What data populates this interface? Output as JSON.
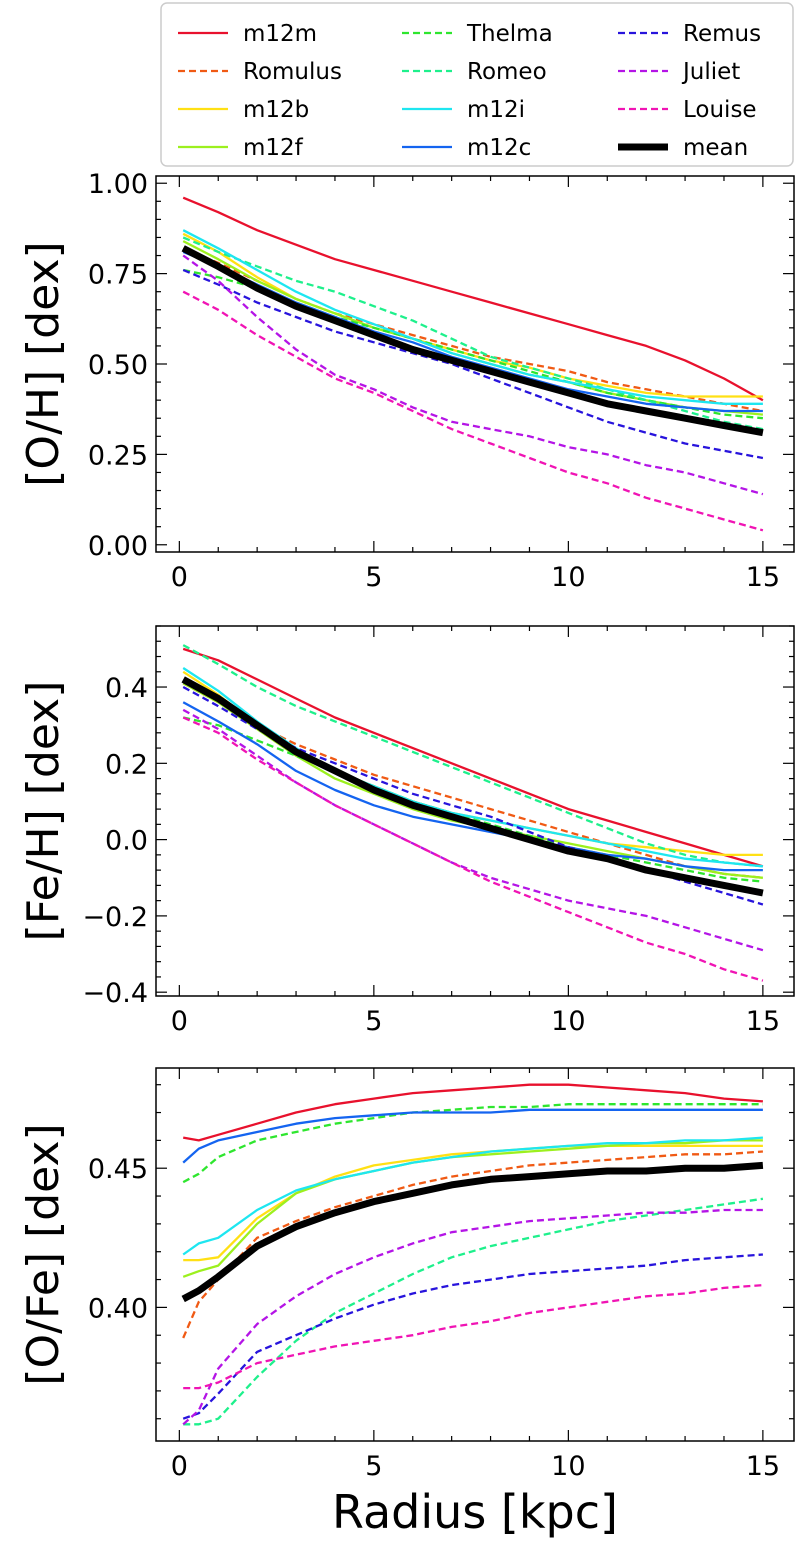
{
  "legend": {
    "placement": "top",
    "columns": 3,
    "entries": [
      {
        "name": "m12m",
        "color": "#e8112d",
        "dash": "solid"
      },
      {
        "name": "Romulus",
        "color": "#f05a14",
        "dash": "dashed"
      },
      {
        "name": "m12b",
        "color": "#ffe014",
        "dash": "solid"
      },
      {
        "name": "m12f",
        "color": "#9cf01e",
        "dash": "solid"
      },
      {
        "name": "Thelma",
        "color": "#2ee62e",
        "dash": "dashed"
      },
      {
        "name": "Romeo",
        "color": "#1ef08c",
        "dash": "dashed"
      },
      {
        "name": "m12i",
        "color": "#1ee6f0",
        "dash": "solid"
      },
      {
        "name": "m12c",
        "color": "#1464f0",
        "dash": "solid"
      },
      {
        "name": "Remus",
        "color": "#2814dc",
        "dash": "dashed"
      },
      {
        "name": "Juliet",
        "color": "#b414e6",
        "dash": "dashed"
      },
      {
        "name": "Louise",
        "color": "#f014b4",
        "dash": "dashed"
      },
      {
        "name": "mean",
        "color": "#000000",
        "dash": "solid"
      }
    ]
  },
  "chart_data": [
    {
      "type": "line",
      "ylabel": "[O/H] [dex]",
      "xlabel": "",
      "xlim": [
        -0.6,
        15.8
      ],
      "ylim": [
        -0.02,
        1.02
      ],
      "xticks": [
        0,
        5,
        10,
        15
      ],
      "xtick_labels": [
        "0",
        "5",
        "10",
        "15"
      ],
      "yticks": [
        0.0,
        0.25,
        0.5,
        0.75,
        1.0
      ],
      "ytick_labels": [
        "0.00",
        "0.25",
        "0.50",
        "0.75",
        "1.00"
      ],
      "x": [
        0.1,
        1,
        2,
        3,
        4,
        5,
        6,
        7,
        8,
        9,
        10,
        11,
        12,
        13,
        14,
        15
      ],
      "series": [
        {
          "name": "m12m",
          "values": [
            0.96,
            0.92,
            0.87,
            0.83,
            0.79,
            0.76,
            0.73,
            0.7,
            0.67,
            0.64,
            0.61,
            0.58,
            0.55,
            0.51,
            0.46,
            0.4
          ]
        },
        {
          "name": "Romulus",
          "values": [
            0.82,
            0.78,
            0.73,
            0.68,
            0.64,
            0.61,
            0.58,
            0.55,
            0.52,
            0.5,
            0.48,
            0.45,
            0.43,
            0.41,
            0.39,
            0.37
          ]
        },
        {
          "name": "m12b",
          "values": [
            0.86,
            0.81,
            0.74,
            0.68,
            0.64,
            0.6,
            0.57,
            0.54,
            0.51,
            0.49,
            0.46,
            0.44,
            0.42,
            0.41,
            0.41,
            0.41
          ]
        },
        {
          "name": "m12f",
          "values": [
            0.84,
            0.79,
            0.73,
            0.68,
            0.64,
            0.6,
            0.57,
            0.53,
            0.5,
            0.47,
            0.45,
            0.42,
            0.4,
            0.38,
            0.37,
            0.36
          ]
        },
        {
          "name": "Thelma",
          "values": [
            0.76,
            0.74,
            0.71,
            0.67,
            0.63,
            0.6,
            0.57,
            0.54,
            0.51,
            0.48,
            0.45,
            0.42,
            0.4,
            0.38,
            0.36,
            0.35
          ]
        },
        {
          "name": "Romeo",
          "values": [
            0.85,
            0.81,
            0.77,
            0.73,
            0.7,
            0.66,
            0.62,
            0.57,
            0.52,
            0.49,
            0.46,
            0.43,
            0.4,
            0.37,
            0.34,
            0.32
          ]
        },
        {
          "name": "m12i",
          "values": [
            0.87,
            0.82,
            0.76,
            0.7,
            0.65,
            0.61,
            0.57,
            0.53,
            0.5,
            0.47,
            0.45,
            0.43,
            0.41,
            0.4,
            0.39,
            0.39
          ]
        },
        {
          "name": "m12c",
          "values": [
            0.81,
            0.77,
            0.72,
            0.67,
            0.63,
            0.59,
            0.56,
            0.52,
            0.49,
            0.46,
            0.43,
            0.41,
            0.39,
            0.38,
            0.37,
            0.37
          ]
        },
        {
          "name": "Remus",
          "values": [
            0.76,
            0.72,
            0.67,
            0.63,
            0.59,
            0.56,
            0.53,
            0.5,
            0.46,
            0.42,
            0.38,
            0.34,
            0.31,
            0.28,
            0.26,
            0.24
          ]
        },
        {
          "name": "Juliet",
          "values": [
            0.8,
            0.73,
            0.63,
            0.54,
            0.47,
            0.43,
            0.38,
            0.34,
            0.32,
            0.3,
            0.27,
            0.25,
            0.22,
            0.2,
            0.17,
            0.14
          ]
        },
        {
          "name": "Louise",
          "values": [
            0.7,
            0.65,
            0.58,
            0.52,
            0.46,
            0.42,
            0.37,
            0.32,
            0.28,
            0.24,
            0.2,
            0.17,
            0.13,
            0.1,
            0.07,
            0.04
          ]
        },
        {
          "name": "mean",
          "values": [
            0.82,
            0.77,
            0.71,
            0.66,
            0.62,
            0.58,
            0.54,
            0.51,
            0.48,
            0.45,
            0.42,
            0.39,
            0.37,
            0.35,
            0.33,
            0.31
          ]
        }
      ]
    },
    {
      "type": "line",
      "ylabel": "[Fe/H] [dex]",
      "xlabel": "",
      "xlim": [
        -0.6,
        15.8
      ],
      "ylim": [
        -0.41,
        0.56
      ],
      "xticks": [
        0,
        5,
        10,
        15
      ],
      "xtick_labels": [
        "0",
        "5",
        "10",
        "15"
      ],
      "yticks": [
        -0.4,
        -0.2,
        0.0,
        0.2,
        0.4
      ],
      "ytick_labels": [
        "−0.4",
        "−0.2",
        "0.0",
        "0.2",
        "0.4"
      ],
      "x": [
        0.1,
        1,
        2,
        3,
        4,
        5,
        6,
        7,
        8,
        9,
        10,
        11,
        12,
        13,
        14,
        15
      ],
      "series": [
        {
          "name": "m12m",
          "values": [
            0.5,
            0.47,
            0.42,
            0.37,
            0.32,
            0.28,
            0.24,
            0.2,
            0.16,
            0.12,
            0.08,
            0.05,
            0.02,
            -0.01,
            -0.04,
            -0.07
          ]
        },
        {
          "name": "Romulus",
          "values": [
            0.41,
            0.36,
            0.3,
            0.25,
            0.21,
            0.17,
            0.14,
            0.11,
            0.08,
            0.05,
            0.02,
            -0.01,
            -0.04,
            -0.07,
            -0.09,
            -0.1
          ]
        },
        {
          "name": "m12b",
          "values": [
            0.44,
            0.38,
            0.3,
            0.23,
            0.18,
            0.14,
            0.1,
            0.07,
            0.05,
            0.03,
            0.01,
            -0.01,
            -0.02,
            -0.03,
            -0.04,
            -0.04
          ]
        },
        {
          "name": "m12f",
          "values": [
            0.41,
            0.36,
            0.29,
            0.22,
            0.16,
            0.12,
            0.08,
            0.05,
            0.03,
            0.01,
            -0.01,
            -0.03,
            -0.05,
            -0.07,
            -0.09,
            -0.1
          ]
        },
        {
          "name": "Thelma",
          "values": [
            0.32,
            0.3,
            0.26,
            0.22,
            0.18,
            0.14,
            0.1,
            0.07,
            0.04,
            0.01,
            -0.02,
            -0.04,
            -0.06,
            -0.08,
            -0.1,
            -0.11
          ]
        },
        {
          "name": "Romeo",
          "values": [
            0.51,
            0.46,
            0.4,
            0.35,
            0.31,
            0.27,
            0.23,
            0.19,
            0.15,
            0.11,
            0.07,
            0.03,
            -0.01,
            -0.04,
            -0.06,
            -0.07
          ]
        },
        {
          "name": "m12i",
          "values": [
            0.45,
            0.39,
            0.31,
            0.24,
            0.18,
            0.14,
            0.1,
            0.07,
            0.05,
            0.03,
            0.01,
            -0.01,
            -0.03,
            -0.05,
            -0.06,
            -0.07
          ]
        },
        {
          "name": "m12c",
          "values": [
            0.36,
            0.31,
            0.25,
            0.18,
            0.13,
            0.09,
            0.06,
            0.04,
            0.02,
            0.0,
            -0.02,
            -0.04,
            -0.05,
            -0.07,
            -0.08,
            -0.08
          ]
        },
        {
          "name": "Remus",
          "values": [
            0.4,
            0.35,
            0.29,
            0.24,
            0.2,
            0.16,
            0.12,
            0.09,
            0.06,
            0.02,
            -0.02,
            -0.05,
            -0.08,
            -0.11,
            -0.14,
            -0.17
          ]
        },
        {
          "name": "Juliet",
          "values": [
            0.34,
            0.29,
            0.22,
            0.15,
            0.09,
            0.04,
            -0.01,
            -0.06,
            -0.1,
            -0.13,
            -0.16,
            -0.18,
            -0.2,
            -0.23,
            -0.26,
            -0.29
          ]
        },
        {
          "name": "Louise",
          "values": [
            0.32,
            0.28,
            0.21,
            0.15,
            0.09,
            0.04,
            -0.01,
            -0.06,
            -0.11,
            -0.15,
            -0.19,
            -0.23,
            -0.27,
            -0.3,
            -0.34,
            -0.37
          ]
        },
        {
          "name": "mean",
          "values": [
            0.42,
            0.37,
            0.3,
            0.23,
            0.18,
            0.13,
            0.09,
            0.06,
            0.03,
            0.0,
            -0.03,
            -0.05,
            -0.08,
            -0.1,
            -0.12,
            -0.14
          ]
        }
      ]
    },
    {
      "type": "line",
      "ylabel": "[O/Fe] [dex]",
      "xlabel": "Radius [kpc]",
      "xlim": [
        -0.6,
        15.8
      ],
      "ylim": [
        0.352,
        0.486
      ],
      "xticks": [
        0,
        5,
        10,
        15
      ],
      "xtick_labels": [
        "0",
        "5",
        "10",
        "15"
      ],
      "yticks": [
        0.4,
        0.45
      ],
      "ytick_labels": [
        "0.40",
        "0.45"
      ],
      "x": [
        0.1,
        0.5,
        1,
        2,
        3,
        4,
        5,
        6,
        7,
        8,
        9,
        10,
        11,
        12,
        13,
        14,
        15
      ],
      "series": [
        {
          "name": "m12m",
          "values": [
            0.461,
            0.46,
            0.462,
            0.466,
            0.47,
            0.473,
            0.475,
            0.477,
            0.478,
            0.479,
            0.48,
            0.48,
            0.479,
            0.478,
            0.477,
            0.475,
            0.474
          ]
        },
        {
          "name": "Romulus",
          "values": [
            0.389,
            0.402,
            0.41,
            0.425,
            0.431,
            0.436,
            0.44,
            0.444,
            0.447,
            0.449,
            0.451,
            0.452,
            0.453,
            0.454,
            0.455,
            0.455,
            0.456
          ]
        },
        {
          "name": "m12b",
          "values": [
            0.417,
            0.417,
            0.418,
            0.432,
            0.441,
            0.447,
            0.451,
            0.453,
            0.455,
            0.456,
            0.457,
            0.458,
            0.458,
            0.458,
            0.458,
            0.458,
            0.458
          ]
        },
        {
          "name": "m12f",
          "values": [
            0.411,
            0.413,
            0.415,
            0.43,
            0.441,
            0.446,
            0.449,
            0.452,
            0.454,
            0.455,
            0.456,
            0.457,
            0.458,
            0.459,
            0.459,
            0.46,
            0.46
          ]
        },
        {
          "name": "Thelma",
          "values": [
            0.445,
            0.448,
            0.454,
            0.46,
            0.463,
            0.466,
            0.468,
            0.47,
            0.471,
            0.472,
            0.472,
            0.473,
            0.473,
            0.473,
            0.473,
            0.473,
            0.473
          ]
        },
        {
          "name": "Romeo",
          "values": [
            0.358,
            0.358,
            0.36,
            0.375,
            0.388,
            0.398,
            0.405,
            0.412,
            0.418,
            0.422,
            0.425,
            0.428,
            0.431,
            0.433,
            0.435,
            0.437,
            0.439
          ]
        },
        {
          "name": "m12i",
          "values": [
            0.419,
            0.423,
            0.425,
            0.435,
            0.442,
            0.446,
            0.449,
            0.452,
            0.454,
            0.456,
            0.457,
            0.458,
            0.459,
            0.459,
            0.46,
            0.46,
            0.461
          ]
        },
        {
          "name": "m12c",
          "values": [
            0.452,
            0.457,
            0.46,
            0.463,
            0.466,
            0.468,
            0.469,
            0.47,
            0.47,
            0.47,
            0.471,
            0.471,
            0.471,
            0.471,
            0.471,
            0.471,
            0.471
          ]
        },
        {
          "name": "Remus",
          "values": [
            0.36,
            0.362,
            0.369,
            0.384,
            0.39,
            0.396,
            0.401,
            0.405,
            0.408,
            0.41,
            0.412,
            0.413,
            0.414,
            0.415,
            0.417,
            0.418,
            0.419
          ]
        },
        {
          "name": "Juliet",
          "values": [
            0.358,
            0.363,
            0.378,
            0.394,
            0.404,
            0.412,
            0.418,
            0.423,
            0.427,
            0.429,
            0.431,
            0.432,
            0.433,
            0.434,
            0.434,
            0.435,
            0.435
          ]
        },
        {
          "name": "Louise",
          "values": [
            0.371,
            0.371,
            0.373,
            0.38,
            0.383,
            0.386,
            0.388,
            0.39,
            0.393,
            0.395,
            0.398,
            0.4,
            0.402,
            0.404,
            0.405,
            0.407,
            0.408
          ]
        },
        {
          "name": "mean",
          "values": [
            0.403,
            0.406,
            0.411,
            0.422,
            0.429,
            0.434,
            0.438,
            0.441,
            0.444,
            0.446,
            0.447,
            0.448,
            0.449,
            0.449,
            0.45,
            0.45,
            0.451
          ]
        }
      ]
    }
  ]
}
